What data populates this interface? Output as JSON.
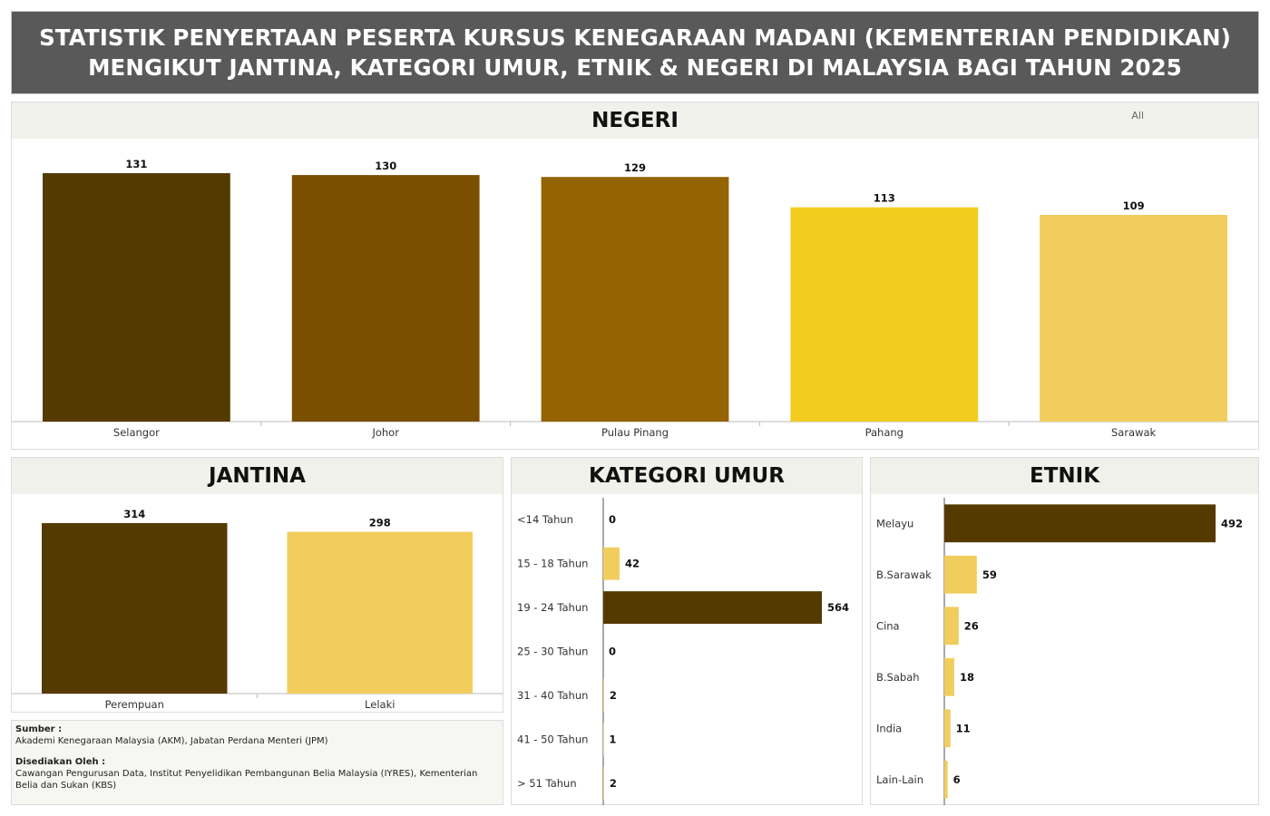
{
  "header": {
    "line1": "STATISTIK PENYERTAAN PESERTA KURSUS KENEGARAAN MADANI (KEMENTERIAN PENDIDIKAN)",
    "line2": "MENGIKUT JANTINA, KATEGORI UMUR, ETNIK & NEGERI DI MALAYSIA BAGI TAHUN 2025"
  },
  "filter_label": "All",
  "chart_data": [
    {
      "id": "negeri",
      "type": "bar",
      "title": "NEGERI",
      "categories": [
        "Selangor",
        "Johor",
        "Pulau Pinang",
        "Pahang",
        "Sarawak"
      ],
      "values": [
        131,
        130,
        129,
        113,
        109
      ],
      "colors": [
        "#553a00",
        "#7a4f00",
        "#946302",
        "#f2cc1f",
        "#f1cd5d"
      ],
      "ylim": [
        0,
        131
      ]
    },
    {
      "id": "jantina",
      "type": "bar",
      "title": "JANTINA",
      "categories": [
        "Perempuan",
        "Lelaki"
      ],
      "values": [
        314,
        298
      ],
      "colors": [
        "#553a00",
        "#f1cd5d"
      ],
      "ylim": [
        0,
        314
      ]
    },
    {
      "id": "umur",
      "type": "bar",
      "orientation": "horizontal",
      "title": "KATEGORI UMUR",
      "categories": [
        "<14 Tahun",
        "15 - 18 Tahun",
        "19 - 24 Tahun",
        "25 - 30 Tahun",
        "31 - 40 Tahun",
        "41 - 50 Tahun",
        "> 51 Tahun"
      ],
      "values": [
        0,
        42,
        564,
        0,
        2,
        1,
        2
      ],
      "colors": [
        "#f1cd5d",
        "#f1cd5d",
        "#553a00",
        "#f1cd5d",
        "#f1cd5d",
        "#f1cd5d",
        "#f1cd5d"
      ],
      "xlim": [
        0,
        564
      ]
    },
    {
      "id": "etnik",
      "type": "bar",
      "orientation": "horizontal",
      "title": "ETNIK",
      "categories": [
        "Melayu",
        "B.Sarawak",
        "Cina",
        "B.Sabah",
        "India",
        "Lain-Lain"
      ],
      "values": [
        492,
        59,
        26,
        18,
        11,
        6
      ],
      "colors": [
        "#553a00",
        "#f1cd5d",
        "#f1cd5d",
        "#f1cd5d",
        "#f1cd5d",
        "#f1cd5d"
      ],
      "xlim": [
        0,
        492
      ]
    }
  ],
  "source": {
    "sumber_label": "Sumber :",
    "sumber_text": "Akademi Kenegaraan Malaysia (AKM), Jabatan Perdana Menteri (JPM)",
    "disediakan_label": "Disediakan Oleh :",
    "disediakan_text": "Cawangan Pengurusan Data, Institut Penyelidikan Pembangunan Belia Malaysia (IYRES), Kementerian Belia dan Sukan (KBS)"
  }
}
